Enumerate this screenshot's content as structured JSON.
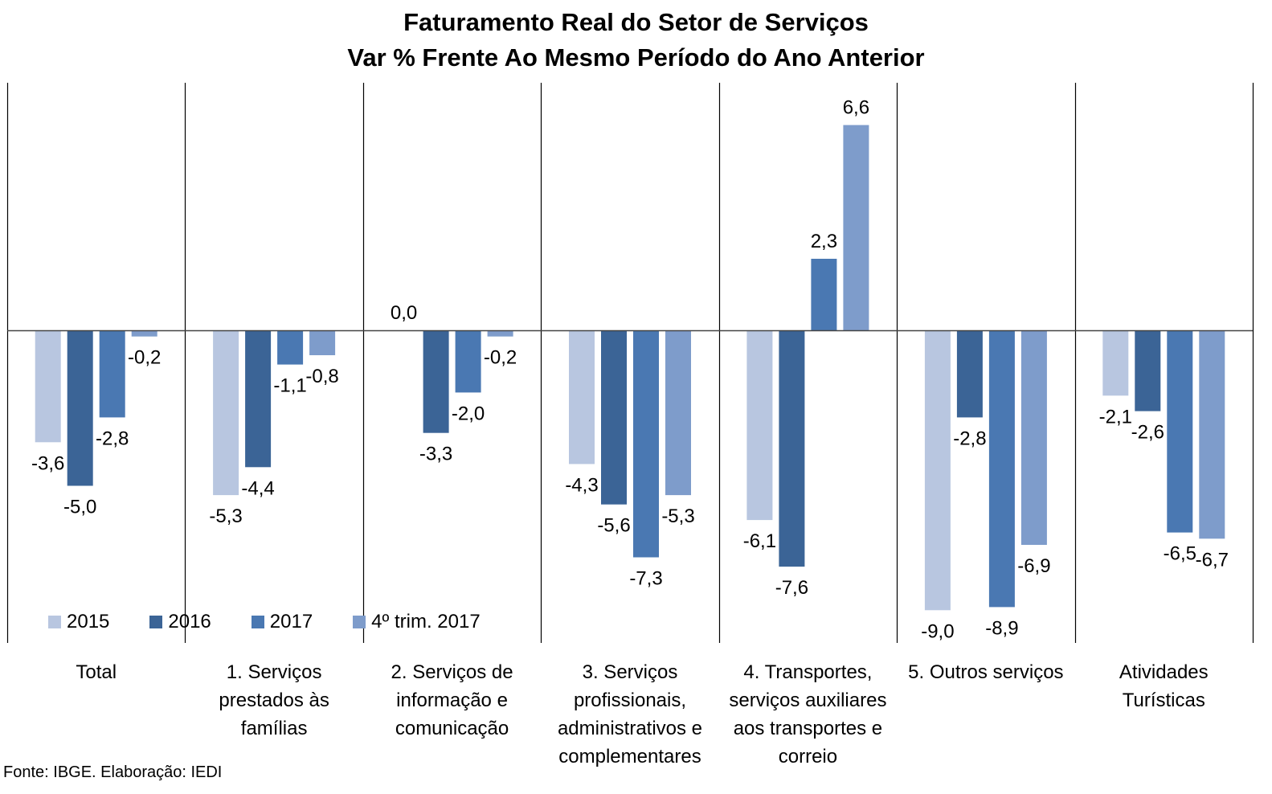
{
  "chart_data": {
    "type": "bar",
    "title": "Faturamento Real do Setor de Serviços",
    "subtitle": "Var % Frente Ao Mesmo Período do Ano Anterior",
    "categories": [
      "Total",
      "1. Serviços prestados às famílias",
      "2. Serviços de informação e comunicação",
      "3. Serviços profissionais, administrativos e complementares",
      "4. Transportes, serviços auxiliares aos transportes e correio",
      "5. Outros serviços",
      "Atividades Turísticas"
    ],
    "category_lines": [
      [
        "Total"
      ],
      [
        "1. Serviços",
        "prestados às",
        "famílias"
      ],
      [
        "2. Serviços de",
        "informação e",
        "comunicação"
      ],
      [
        "3. Serviços",
        "profissionais,",
        "administrativos e",
        "complementares"
      ],
      [
        "4. Transportes,",
        "serviços auxiliares",
        "aos transportes e",
        "correio"
      ],
      [
        "5. Outros serviços"
      ],
      [
        "Atividades",
        "Turísticas"
      ]
    ],
    "series": [
      {
        "name": "2015",
        "color": "#b8c6e0",
        "values": [
          -3.6,
          -5.3,
          0.0,
          -4.3,
          -6.1,
          -9.0,
          -2.1
        ],
        "labels": [
          "-3,6",
          "-5,3",
          "0,0",
          "-4,3",
          "-6,1",
          "-9,0",
          "-2,1"
        ]
      },
      {
        "name": "2016",
        "color": "#3b6496",
        "values": [
          -5.0,
          -4.4,
          -3.3,
          -5.6,
          -7.6,
          -2.8,
          -2.6
        ],
        "labels": [
          "-5,0",
          "-4,4",
          "-3,3",
          "-5,6",
          "-7,6",
          "-2,8",
          "-2,6"
        ]
      },
      {
        "name": "2017",
        "color": "#4a78b2",
        "values": [
          -2.8,
          -1.1,
          -2.0,
          -7.3,
          2.3,
          -8.9,
          -6.5
        ],
        "labels": [
          "-2,8",
          "-1,1",
          "-2,0",
          "-7,3",
          "2,3",
          "-8,9",
          "-6,5"
        ]
      },
      {
        "name": "4º trim. 2017",
        "color": "#7e9ccb",
        "values": [
          -0.2,
          -0.8,
          -0.2,
          -5.3,
          6.6,
          -6.9,
          -6.7
        ],
        "labels": [
          "-0,2",
          "-0,8",
          "-0,2",
          "-5,3",
          "6,6",
          "-6,9",
          "-6,7"
        ]
      }
    ],
    "legend_position": "bottom-left",
    "grid": false,
    "source": "Fonte: IBGE. Elaboração: IEDI"
  }
}
